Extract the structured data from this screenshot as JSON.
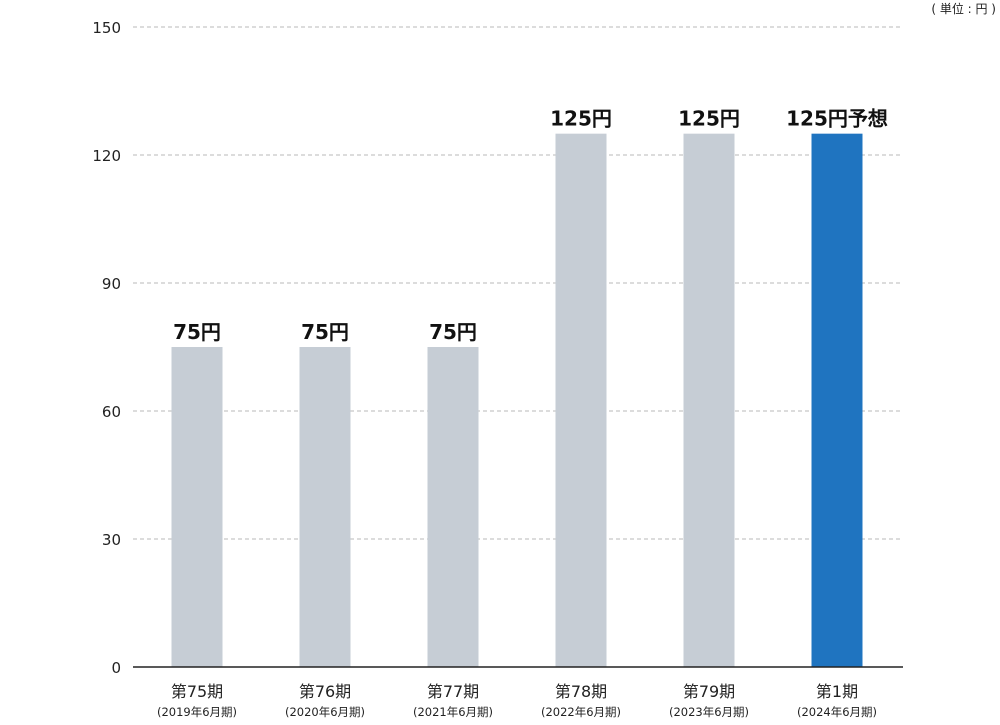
{
  "unit_label": "( 単位 : 円 )",
  "colors": {
    "bar_default": "#c6cdd5",
    "bar_highlight": "#1f74c0",
    "highlight_text": "#1f74c0",
    "gridline": "#c8c8c8",
    "axis": "#222222"
  },
  "chart_data": {
    "type": "bar",
    "categories": [
      "第75期",
      "第76期",
      "第77期",
      "第78期",
      "第79期",
      "第1期"
    ],
    "category_sublabels": [
      "(2019年6月期)",
      "(2020年6月期)",
      "(2021年6月期)",
      "(2022年6月期)",
      "(2023年6月期)",
      "(2024年6月期)"
    ],
    "values": [
      75,
      75,
      75,
      125,
      125,
      125
    ],
    "data_labels": [
      "75円",
      "75円",
      "75円",
      "125円",
      "125円",
      "125円予想"
    ],
    "highlight_index": 5,
    "yticks": [
      0,
      30,
      60,
      90,
      120,
      150
    ],
    "ylim": [
      0,
      150
    ],
    "grid": true,
    "title": "",
    "xlabel": "",
    "ylabel": ""
  }
}
